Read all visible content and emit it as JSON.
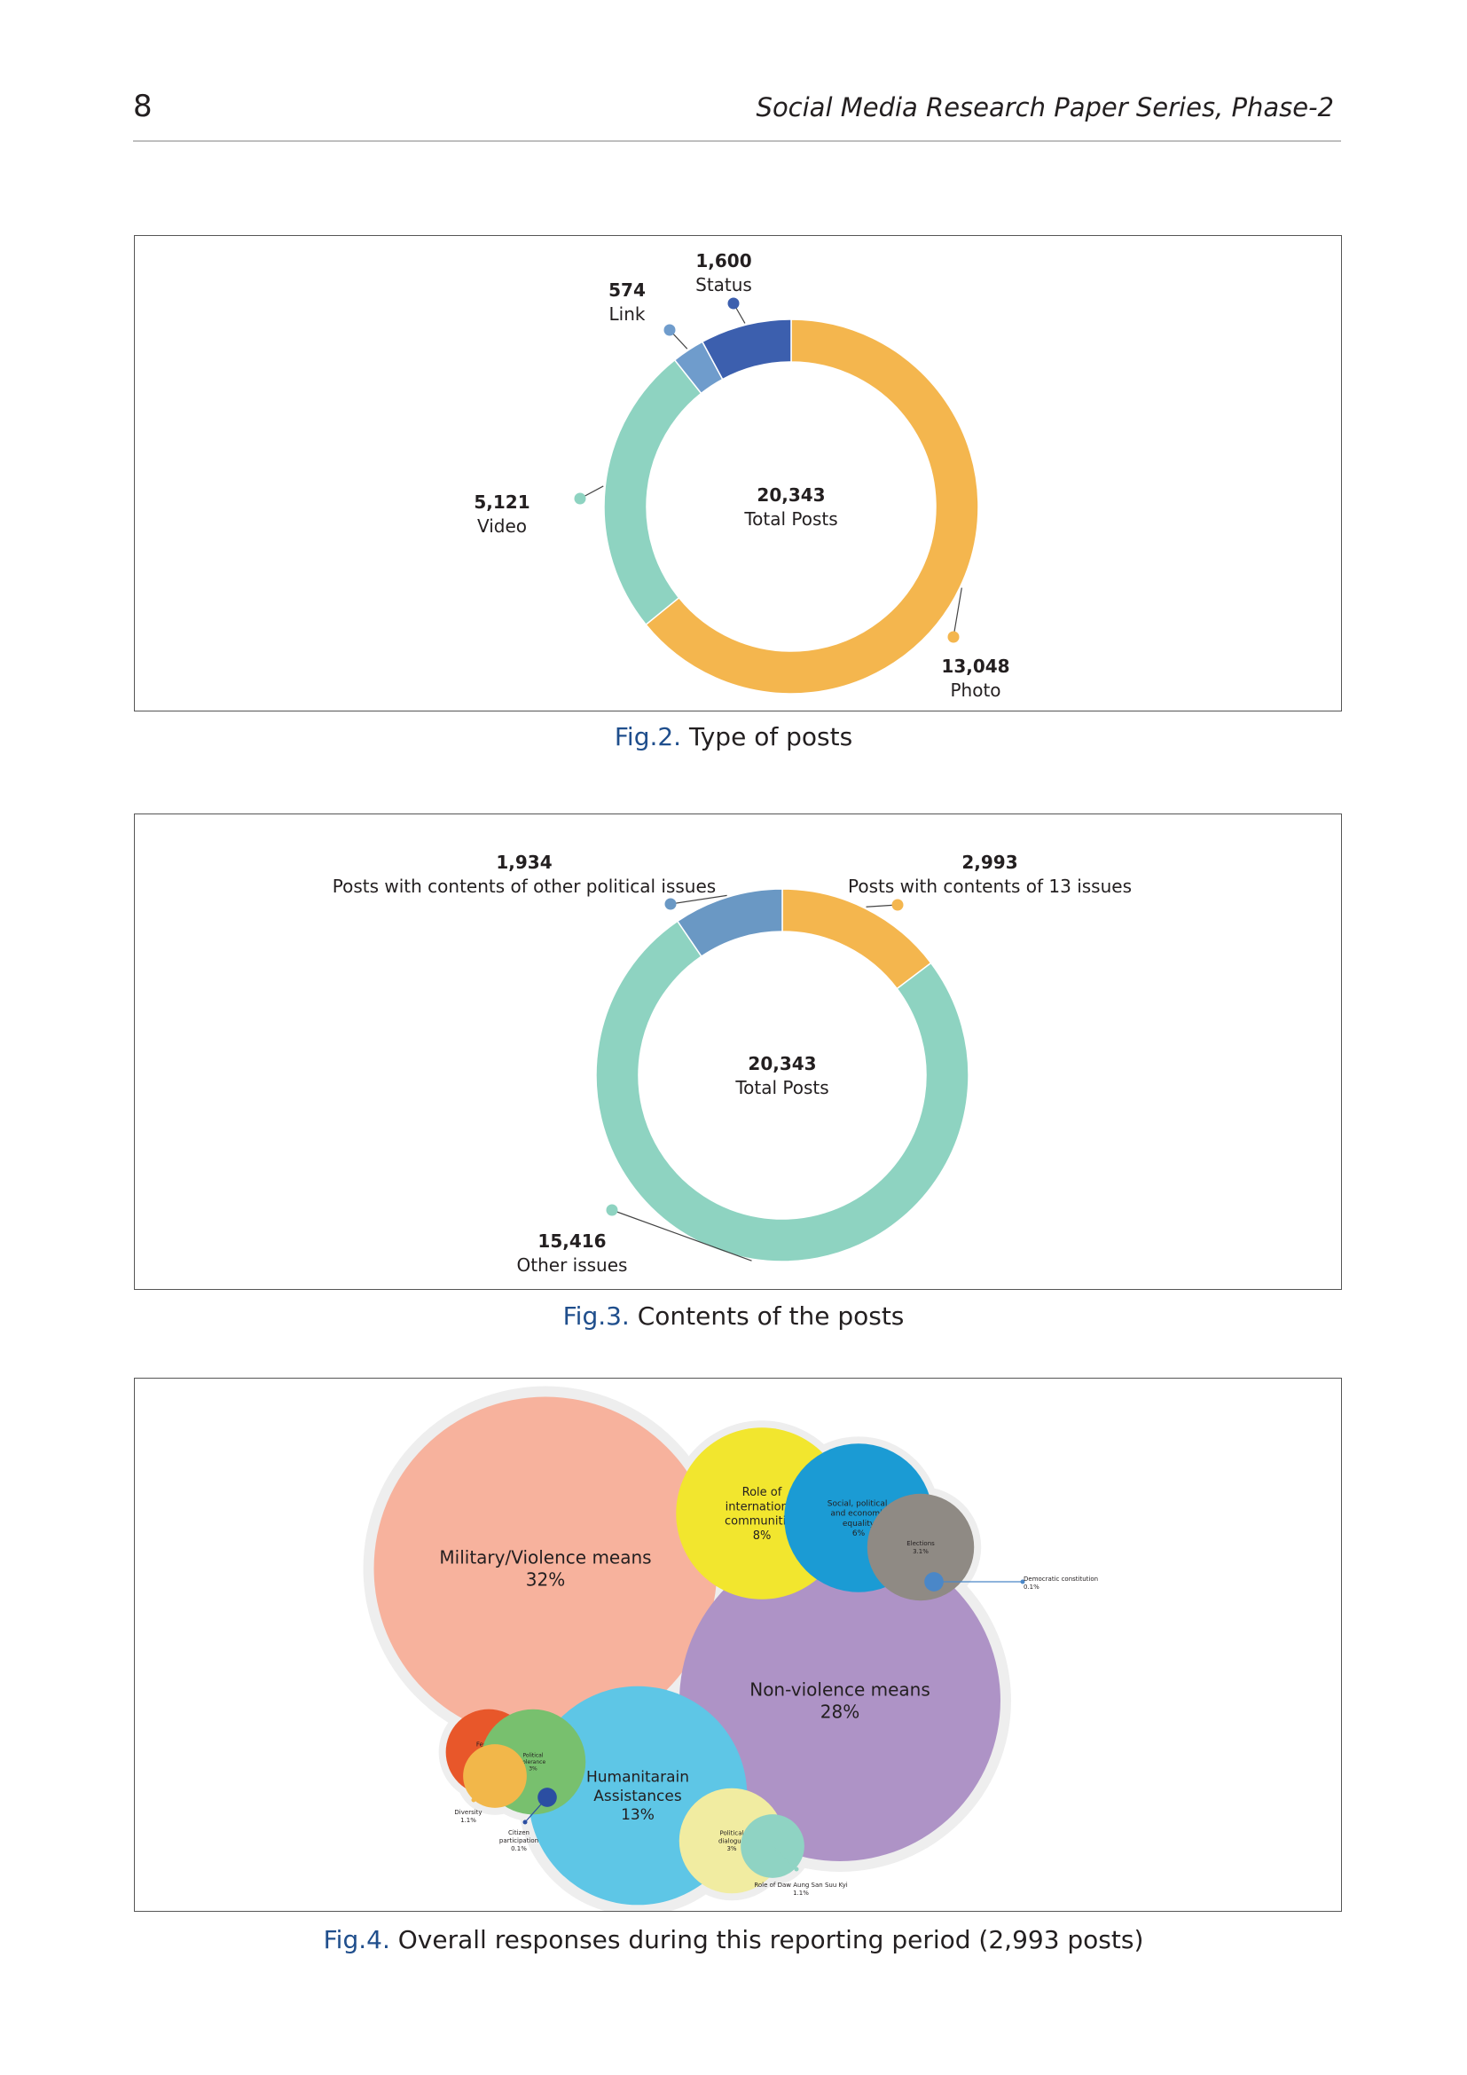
{
  "header": {
    "page_number": "8",
    "series_title": "Social Media Research Paper Series, Phase-2"
  },
  "colors": {
    "photo": "#f4b64e",
    "video": "#8ed3c1",
    "link": "#6f9ccc",
    "status": "#3c5fae",
    "other_political": "#6a98c4",
    "thirteen_issues": "#f4b64e",
    "other_issues": "#8ed3c1",
    "caption_label": "#1f4e8c"
  },
  "captions": {
    "fig2_label": "Fig.2.",
    "fig2_text": " Type of posts",
    "fig3_label": "Fig.3.",
    "fig3_text": " Contents of the posts",
    "fig4_label": "Fig.4.",
    "fig4_text": " Overall responses during this reporting period (2,993 posts)"
  },
  "chart_data": [
    {
      "type": "pie",
      "variant": "donut",
      "center_value": "20,343",
      "center_label": "Total Posts",
      "slices": [
        {
          "label": "Photo",
          "value": 13048,
          "value_text": "13,048",
          "color": "#f4b64e"
        },
        {
          "label": "Video",
          "value": 5121,
          "value_text": "5,121",
          "color": "#8ed3c1"
        },
        {
          "label": "Link",
          "value": 574,
          "value_text": "574",
          "color": "#6f9ccc"
        },
        {
          "label": "Status",
          "value": 1600,
          "value_text": "1,600",
          "color": "#3c5fae"
        }
      ]
    },
    {
      "type": "pie",
      "variant": "donut",
      "center_value": "20,343",
      "center_label": "Total Posts",
      "slices": [
        {
          "label": "Posts with contents of 13 issues",
          "value": 2993,
          "value_text": "2,993",
          "color": "#f4b64e"
        },
        {
          "label": "Other issues",
          "value": 15416,
          "value_text": "15,416",
          "color": "#8ed3c1"
        },
        {
          "label": "Posts with contents of other political issues",
          "value": 1934,
          "value_text": "1,934",
          "color": "#6a98c4"
        }
      ]
    },
    {
      "type": "bubble",
      "bubbles": [
        {
          "lines": [
            "Military/Violence means"
          ],
          "pct": "32%",
          "value": 32,
          "color": "#f7b29d",
          "text_color": "#231f20"
        },
        {
          "lines": [
            "Non-violence means"
          ],
          "pct": "28%",
          "value": 28,
          "color": "#ae93c6",
          "text_color": "#ffffff"
        },
        {
          "lines": [
            "Humanitarain",
            "Assistances"
          ],
          "pct": "13%",
          "value": 13,
          "color": "#5ec6e6",
          "text_color": "#ffffff"
        },
        {
          "lines": [
            "Role of",
            "international",
            "communities"
          ],
          "pct": "8%",
          "value": 8,
          "color": "#f2e62e",
          "text_color": "#231f20"
        },
        {
          "lines": [
            "Social, political,",
            "and economic",
            "equality"
          ],
          "pct": "6%",
          "value": 6,
          "color": "#1b9bd4",
          "text_color": "#ffffff"
        },
        {
          "lines": [
            "Elections"
          ],
          "pct": "3.1%",
          "value": 3.1,
          "color": "#8f8a84",
          "text_color": "#ffffff"
        },
        {
          "lines": [
            "Democratic constitution"
          ],
          "pct": "0.1%",
          "value": 0.1,
          "color": "#4a87c8",
          "text_color": "#231f20"
        },
        {
          "lines": [
            "Federal-",
            "ism"
          ],
          "pct": "2%",
          "value": 2,
          "color": "#e8572a",
          "text_color": "#ffffff"
        },
        {
          "lines": [
            "Political",
            "tolerance"
          ],
          "pct": "3%",
          "value": 3,
          "color": "#78c06e",
          "text_color": "#ffffff"
        },
        {
          "lines": [
            "Diversity"
          ],
          "pct": "1.1%",
          "value": 1.1,
          "color": "#f2b74a",
          "text_color": "#231f20"
        },
        {
          "lines": [
            "Citizen",
            "participation"
          ],
          "pct": "0.1%",
          "value": 0.1,
          "color": "#2b4ea2",
          "text_color": "#231f20"
        },
        {
          "lines": [
            "Political",
            "dialogue"
          ],
          "pct": "3%",
          "value": 3,
          "color": "#f1eca1",
          "text_color": "#231f20"
        },
        {
          "lines": [
            "Role of Daw Aung San Suu Kyi"
          ],
          "pct": "1.1%",
          "value": 1.1,
          "color": "#8fd3c3",
          "text_color": "#231f20"
        }
      ]
    }
  ]
}
